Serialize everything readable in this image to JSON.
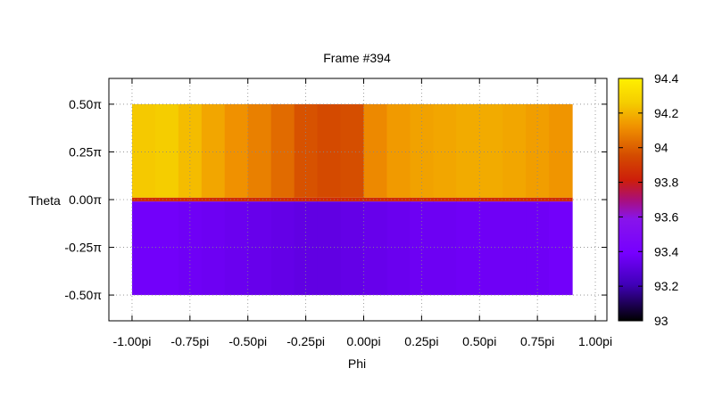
{
  "chart_data": {
    "type": "heatmap",
    "title": "Frame #394",
    "xlabel": "Phi",
    "ylabel": "Theta",
    "xlim": [
      -1.1,
      1.05
    ],
    "ylim": [
      -0.635,
      0.635
    ],
    "data_extent": {
      "x": [
        -1.0,
        0.9
      ],
      "y": [
        -0.5,
        0.5
      ]
    },
    "x_ticks": [
      {
        "value": -1.0,
        "label": "-1.00pi"
      },
      {
        "value": -0.75,
        "label": "-0.75pi"
      },
      {
        "value": -0.5,
        "label": "-0.50pi"
      },
      {
        "value": -0.25,
        "label": "-0.25pi"
      },
      {
        "value": 0.0,
        "label": "0.00pi"
      },
      {
        "value": 0.25,
        "label": "0.25pi"
      },
      {
        "value": 0.5,
        "label": "0.50pi"
      },
      {
        "value": 0.75,
        "label": "0.75pi"
      },
      {
        "value": 1.0,
        "label": "1.00pi"
      }
    ],
    "y_ticks": [
      {
        "value": 0.5,
        "label": "0.50π"
      },
      {
        "value": 0.25,
        "label": "0.25π"
      },
      {
        "value": 0.0,
        "label": "0.00π"
      },
      {
        "value": -0.25,
        "label": "-0.25π"
      },
      {
        "value": -0.5,
        "label": "-0.50π"
      }
    ],
    "colorbar": {
      "range": [
        93.0,
        94.4
      ],
      "ticks": [
        {
          "value": 94.4,
          "label": "94.4"
        },
        {
          "value": 94.2,
          "label": "94.2"
        },
        {
          "value": 94.0,
          "label": "94"
        },
        {
          "value": 93.8,
          "label": "93.8"
        },
        {
          "value": 93.6,
          "label": "93.6"
        },
        {
          "value": 93.4,
          "label": "93.4"
        },
        {
          "value": 93.2,
          "label": "93.2"
        },
        {
          "value": 93.0,
          "label": "93"
        }
      ],
      "palette": "black-blue-purple-red-orange-yellow"
    },
    "grid": true,
    "grid_x": [
      {
        "x": -1.0,
        "upper": 94.25,
        "lower": 93.38
      },
      {
        "x": -0.9,
        "upper": 94.26,
        "lower": 93.38
      },
      {
        "x": -0.8,
        "upper": 94.22,
        "lower": 93.37
      },
      {
        "x": -0.7,
        "upper": 94.17,
        "lower": 93.36
      },
      {
        "x": -0.6,
        "upper": 94.12,
        "lower": 93.35
      },
      {
        "x": -0.5,
        "upper": 94.08,
        "lower": 93.34
      },
      {
        "x": -0.4,
        "upper": 94.03,
        "lower": 93.33
      },
      {
        "x": -0.3,
        "upper": 93.97,
        "lower": 93.32
      },
      {
        "x": -0.2,
        "upper": 93.95,
        "lower": 93.32
      },
      {
        "x": -0.1,
        "upper": 93.96,
        "lower": 93.33
      },
      {
        "x": 0.0,
        "upper": 94.1,
        "lower": 93.34
      },
      {
        "x": 0.1,
        "upper": 94.14,
        "lower": 93.35
      },
      {
        "x": 0.2,
        "upper": 94.16,
        "lower": 93.36
      },
      {
        "x": 0.3,
        "upper": 94.17,
        "lower": 93.36
      },
      {
        "x": 0.4,
        "upper": 94.18,
        "lower": 93.37
      },
      {
        "x": 0.5,
        "upper": 94.18,
        "lower": 93.37
      },
      {
        "x": 0.6,
        "upper": 94.17,
        "lower": 93.37
      },
      {
        "x": 0.7,
        "upper": 94.15,
        "lower": 93.37
      },
      {
        "x": 0.8,
        "upper": 94.13,
        "lower": 93.38
      },
      {
        "x": 0.9,
        "upper": 94.12,
        "lower": 93.38
      }
    ],
    "boundary_value": 93.85
  }
}
